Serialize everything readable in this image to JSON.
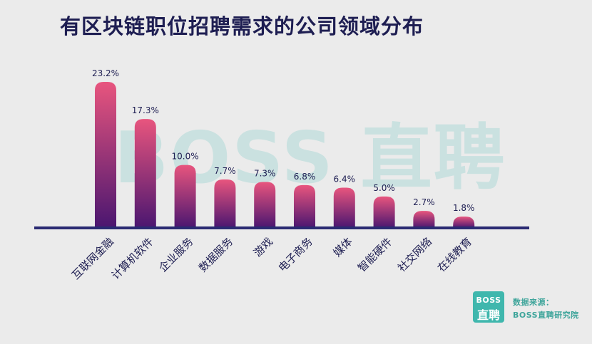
{
  "title": "有区块链职位招聘需求的公司领域分布",
  "watermark": "BOSS 直聘",
  "source": {
    "logo_top": "BOSS",
    "logo_bottom": "直聘",
    "label": "数据来源：",
    "name": "BOSS直聘研究院"
  },
  "colors": {
    "bar_top": "#e8557e",
    "bar_bottom": "#4a1670",
    "axis": "#2a2a72",
    "label": "#1e1e52"
  },
  "chart_data": {
    "type": "bar",
    "title": "有区块链职位招聘需求的公司领域分布",
    "categories": [
      "互联网金融",
      "计算机软件",
      "企业服务",
      "数据服务",
      "游戏",
      "电子商务",
      "媒体",
      "智能硬件",
      "社交网络",
      "在线教育"
    ],
    "values": [
      23.2,
      17.3,
      10.0,
      7.7,
      7.3,
      6.8,
      6.4,
      5.0,
      2.7,
      1.8
    ],
    "value_labels": [
      "23.2%",
      "17.3%",
      "10.0%",
      "7.7%",
      "7.3%",
      "6.8%",
      "6.4%",
      "5.0%",
      "2.7%",
      "1.8%"
    ],
    "unit": "%",
    "ylim": [
      0,
      23.2
    ],
    "grid": false,
    "legend": "none"
  }
}
